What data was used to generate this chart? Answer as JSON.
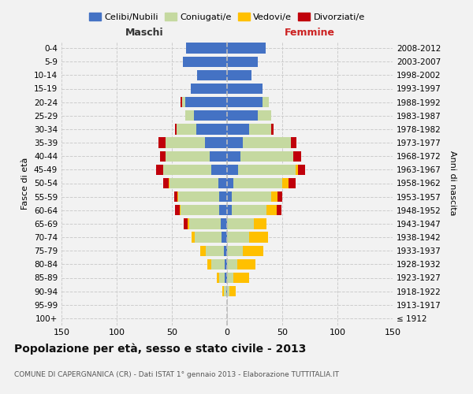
{
  "age_groups": [
    "100+",
    "95-99",
    "90-94",
    "85-89",
    "80-84",
    "75-79",
    "70-74",
    "65-69",
    "60-64",
    "55-59",
    "50-54",
    "45-49",
    "40-44",
    "35-39",
    "30-34",
    "25-29",
    "20-24",
    "15-19",
    "10-14",
    "5-9",
    "0-4"
  ],
  "birth_years": [
    "≤ 1912",
    "1913-1917",
    "1918-1922",
    "1923-1927",
    "1928-1932",
    "1933-1937",
    "1938-1942",
    "1943-1947",
    "1948-1952",
    "1953-1957",
    "1958-1962",
    "1963-1967",
    "1968-1972",
    "1973-1977",
    "1978-1982",
    "1983-1987",
    "1988-1992",
    "1993-1997",
    "1998-2002",
    "2003-2007",
    "2008-2012"
  ],
  "maschi_celibi": [
    0,
    0,
    1,
    2,
    2,
    3,
    5,
    6,
    7,
    7,
    8,
    14,
    16,
    20,
    28,
    30,
    38,
    33,
    27,
    40,
    37
  ],
  "maschi_coniugati": [
    0,
    0,
    2,
    5,
    12,
    16,
    24,
    28,
    35,
    37,
    44,
    44,
    40,
    36,
    18,
    8,
    3,
    0,
    0,
    0,
    0
  ],
  "maschi_vedovi": [
    0,
    0,
    1,
    2,
    4,
    5,
    3,
    2,
    1,
    1,
    1,
    0,
    0,
    0,
    0,
    0,
    0,
    0,
    0,
    0,
    0
  ],
  "maschi_divorziati": [
    0,
    0,
    0,
    0,
    0,
    0,
    0,
    3,
    4,
    3,
    5,
    6,
    5,
    6,
    1,
    0,
    1,
    0,
    0,
    0,
    0
  ],
  "femmine_nubili": [
    0,
    0,
    0,
    0,
    0,
    0,
    0,
    0,
    4,
    4,
    6,
    10,
    12,
    14,
    20,
    28,
    32,
    32,
    22,
    28,
    35
  ],
  "femmine_coniugate": [
    0,
    0,
    2,
    6,
    9,
    14,
    20,
    24,
    32,
    36,
    44,
    52,
    48,
    44,
    20,
    12,
    6,
    0,
    0,
    0,
    0
  ],
  "femmine_vedove": [
    0,
    0,
    6,
    14,
    17,
    19,
    17,
    12,
    9,
    6,
    6,
    2,
    0,
    0,
    0,
    0,
    0,
    0,
    0,
    0,
    0
  ],
  "femmine_divorziate": [
    0,
    0,
    0,
    0,
    0,
    0,
    0,
    0,
    4,
    4,
    6,
    7,
    7,
    5,
    2,
    0,
    0,
    0,
    0,
    0,
    0
  ],
  "colors": {
    "celibi": "#4472c4",
    "coniugati": "#c5d9a0",
    "vedovi": "#ffc000",
    "divorziati": "#c0000b"
  },
  "xlim": 150,
  "title": "Popolazione per età, sesso e stato civile - 2013",
  "subtitle": "COMUNE DI CAPERGNANICA (CR) - Dati ISTAT 1° gennaio 2013 - Elaborazione TUTTITALIA.IT",
  "bg_color": "#f2f2f2",
  "grid_color": "#cccccc",
  "legend_labels": [
    "Celibi/Nubili",
    "Coniugati/e",
    "Vedovi/e",
    "Divorziati/e"
  ]
}
